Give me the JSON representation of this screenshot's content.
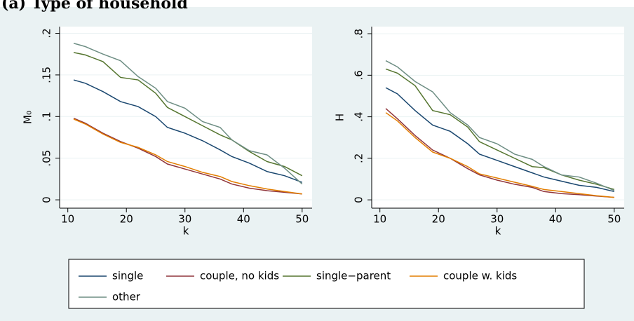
{
  "title": "(a) Type of household",
  "chart_data": [
    {
      "type": "line",
      "y_label": "M₀",
      "x_label": "k",
      "x": [
        11,
        13,
        16,
        19,
        22,
        25,
        27,
        30,
        33,
        36,
        38,
        41,
        44,
        47,
        50
      ],
      "xlim": [
        8.6,
        51.7
      ],
      "xticks": [
        10,
        20,
        30,
        40,
        50
      ],
      "ylim": [
        -0.01,
        0.208
      ],
      "yticks": [
        0,
        {
          "value": 0.05,
          "label": ".05"
        },
        {
          "value": 0.1,
          "label": ".1"
        },
        {
          "value": 0.15,
          "label": ".15"
        },
        {
          "value": 0.2,
          "label": ".2"
        }
      ],
      "grid": true,
      "series": [
        {
          "name": "single",
          "color": "#1a476f",
          "values": [
            0.144,
            0.14,
            0.13,
            0.118,
            0.112,
            0.1,
            0.087,
            0.08,
            0.071,
            0.06,
            0.052,
            0.044,
            0.034,
            0.029,
            0.021
          ]
        },
        {
          "name": "couple, no kids",
          "color": "#90353b",
          "values": [
            0.098,
            0.092,
            0.08,
            0.07,
            0.062,
            0.052,
            0.043,
            0.037,
            0.031,
            0.025,
            0.019,
            0.014,
            0.011,
            0.009,
            0.007
          ]
        },
        {
          "name": "single−parent",
          "color": "#55752f",
          "values": [
            0.177,
            0.174,
            0.166,
            0.147,
            0.144,
            0.128,
            0.111,
            0.1,
            0.089,
            0.078,
            0.072,
            0.058,
            0.046,
            0.04,
            0.029
          ]
        },
        {
          "name": "couple w. kids",
          "color": "#e37e00",
          "values": [
            0.097,
            0.091,
            0.079,
            0.069,
            0.063,
            0.054,
            0.046,
            0.04,
            0.033,
            0.028,
            0.022,
            0.017,
            0.013,
            0.01,
            0.007
          ]
        },
        {
          "name": "other",
          "color": "#6e8e84",
          "values": [
            0.188,
            0.184,
            0.175,
            0.167,
            0.148,
            0.134,
            0.118,
            0.11,
            0.094,
            0.087,
            0.072,
            0.059,
            0.054,
            0.038,
            0.019
          ]
        }
      ]
    },
    {
      "type": "line",
      "y_label": "H",
      "x_label": "k",
      "x": [
        11,
        13,
        16,
        19,
        22,
        25,
        27,
        30,
        33,
        36,
        38,
        41,
        44,
        47,
        50
      ],
      "xlim": [
        8.6,
        51.7
      ],
      "xticks": [
        10,
        20,
        30,
        40,
        50
      ],
      "ylim": [
        -0.04,
        0.834
      ],
      "yticks": [
        0,
        {
          "value": 0.2,
          "label": ".2"
        },
        {
          "value": 0.4,
          "label": ".4"
        },
        {
          "value": 0.6,
          "label": ".6"
        },
        {
          "value": 0.8,
          "label": ".8"
        }
      ],
      "grid": true,
      "series": [
        {
          "color": "#1a476f",
          "values": [
            0.54,
            0.51,
            0.43,
            0.36,
            0.33,
            0.27,
            0.22,
            0.19,
            0.16,
            0.13,
            0.11,
            0.09,
            0.07,
            0.06,
            0.04
          ]
        },
        {
          "color": "#90353b",
          "values": [
            0.44,
            0.39,
            0.31,
            0.24,
            0.2,
            0.15,
            0.12,
            0.095,
            0.075,
            0.06,
            0.04,
            0.03,
            0.025,
            0.018,
            0.012
          ]
        },
        {
          "color": "#55752f",
          "values": [
            0.63,
            0.61,
            0.55,
            0.43,
            0.41,
            0.35,
            0.28,
            0.24,
            0.2,
            0.16,
            0.155,
            0.12,
            0.095,
            0.075,
            0.05
          ]
        },
        {
          "color": "#e37e00",
          "values": [
            0.42,
            0.38,
            0.3,
            0.23,
            0.2,
            0.16,
            0.125,
            0.105,
            0.085,
            0.065,
            0.05,
            0.04,
            0.03,
            0.02,
            0.012
          ]
        },
        {
          "color": "#6e8e84",
          "values": [
            0.67,
            0.64,
            0.57,
            0.52,
            0.42,
            0.36,
            0.3,
            0.27,
            0.22,
            0.195,
            0.16,
            0.12,
            0.11,
            0.08,
            0.045
          ]
        }
      ]
    }
  ]
}
